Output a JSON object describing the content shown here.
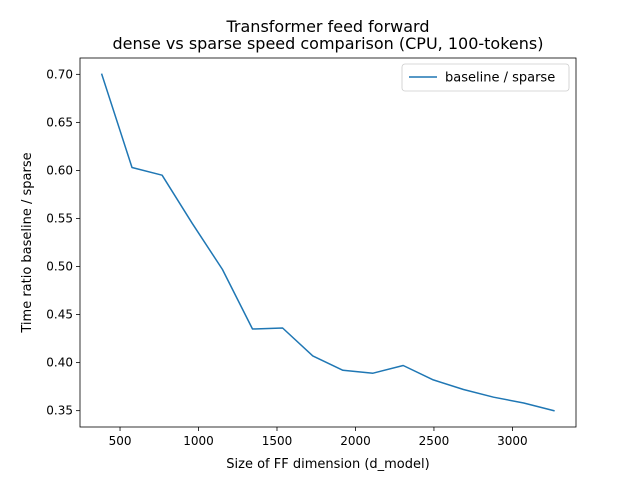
{
  "chart_data": {
    "type": "line",
    "title": "Transformer feed forward",
    "subtitle": "dense vs sparse speed comparison (CPU, 100-tokens)",
    "xlabel": "Size of FF dimension (d_model)",
    "ylabel": "Time ratio baseline / sparse",
    "xlim": [
      245,
      3405
    ],
    "ylim": [
      0.333,
      0.717
    ],
    "xticks": [
      500,
      1000,
      1500,
      2000,
      2500,
      3000
    ],
    "yticks": [
      0.35,
      0.4,
      0.45,
      0.5,
      0.55,
      0.6,
      0.65,
      0.7
    ],
    "xtick_labels": [
      "500",
      "1000",
      "1500",
      "2000",
      "2500",
      "3000"
    ],
    "ytick_labels": [
      "0.35",
      "0.40",
      "0.45",
      "0.50",
      "0.55",
      "0.60",
      "0.65",
      "0.70"
    ],
    "grid": false,
    "legend": {
      "position": "top-right"
    },
    "series": [
      {
        "name": "baseline / sparse",
        "color": "#1f77b4",
        "x": [
          384,
          576,
          768,
          960,
          1152,
          1344,
          1536,
          1728,
          1920,
          2112,
          2304,
          2496,
          2688,
          2880,
          3072,
          3264
        ],
        "values": [
          0.7,
          0.603,
          0.595,
          0.545,
          0.497,
          0.435,
          0.436,
          0.407,
          0.392,
          0.389,
          0.397,
          0.382,
          0.372,
          0.364,
          0.358,
          0.35
        ]
      }
    ]
  }
}
